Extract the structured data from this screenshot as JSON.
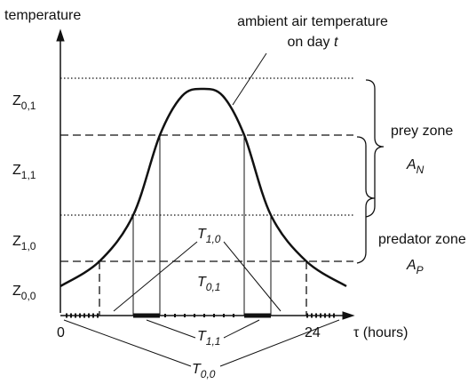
{
  "labels": {
    "y_axis": "temperature",
    "ambient_line1": "ambient air temperature",
    "ambient_line2": "on day",
    "ambient_day": "t",
    "x_zero": "0",
    "x_end": "24",
    "x_axis": "τ (hours)",
    "prey_zone": "prey zone",
    "prey_symbol": "A",
    "prey_sub": "N",
    "predator_zone": "predator zone",
    "predator_symbol": "A",
    "predator_sub": "P"
  },
  "zones": [
    {
      "symbol": "Z",
      "sub": "0,1"
    },
    {
      "symbol": "Z",
      "sub": "1,1"
    },
    {
      "symbol": "Z",
      "sub": "1,0"
    },
    {
      "symbol": "Z",
      "sub": "0,0"
    }
  ],
  "intervals": [
    {
      "symbol": "T",
      "sub": "1,0"
    },
    {
      "symbol": "T",
      "sub": "0,1"
    },
    {
      "symbol": "T",
      "sub": "1,1"
    },
    {
      "symbol": "T",
      "sub": "0,0"
    }
  ]
}
